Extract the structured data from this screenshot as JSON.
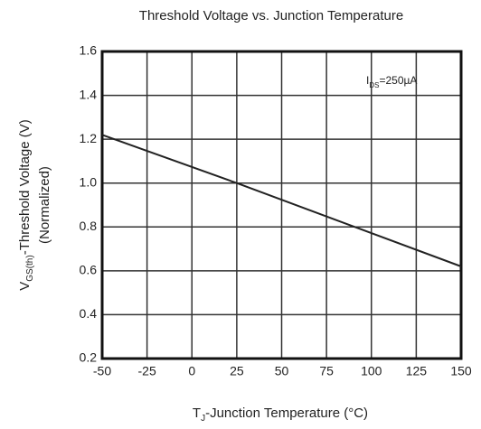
{
  "chart_data": {
    "type": "line",
    "title": "Threshold Voltage vs. Junction Temperature",
    "ylabel": [
      "V",
      "GS(th)",
      "-Threshold Voltage (V)"
    ],
    "ylabel2": "(Normalized)",
    "xlabel": [
      "T",
      "J",
      "-Junction Temperature (°C)"
    ],
    "annotation": [
      "I",
      "DS",
      "=250µA"
    ],
    "x": [
      -50,
      25,
      150
    ],
    "series": [
      {
        "color": "#222222",
        "values": [
          1.22,
          1.0,
          0.62
        ]
      }
    ],
    "xlim": [
      -50,
      150
    ],
    "xticks": [
      -50,
      -25,
      0,
      25,
      50,
      75,
      100,
      125,
      150
    ],
    "ylim": [
      0.2,
      1.6
    ],
    "yticks": [
      0.2,
      0.4,
      0.6,
      0.8,
      {
        "value": 1,
        "label": "1.0"
      },
      1.2,
      1.4,
      1.6
    ],
    "grid": true
  }
}
